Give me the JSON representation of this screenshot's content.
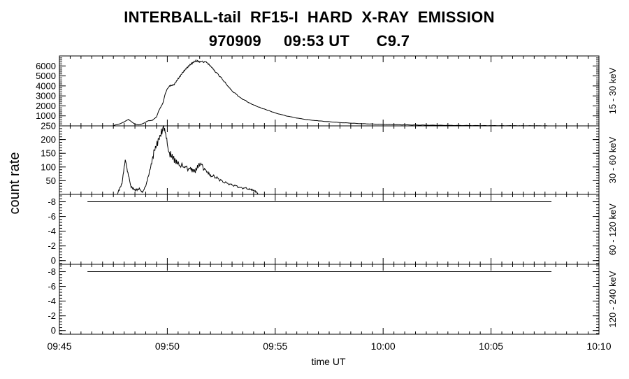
{
  "header": {
    "title_line1": "INTERBALL-tail  RF15-I  HARD  X-RAY  EMISSION",
    "title_line2": "970909     09:53 UT      C9.7"
  },
  "chart_data": {
    "type": "line",
    "xlabel": "time UT",
    "ylabel": "count rate",
    "x_range_minutes": [
      0,
      25
    ],
    "x_ticks": [
      {
        "m": 0,
        "label": "09:45"
      },
      {
        "m": 5,
        "label": "09:50"
      },
      {
        "m": 10,
        "label": "09:55"
      },
      {
        "m": 15,
        "label": "10:00"
      },
      {
        "m": 20,
        "label": "10:05"
      },
      {
        "m": 25,
        "label": "10:10"
      }
    ],
    "panels": [
      {
        "band": "15 - 30 keV",
        "ylim": [
          0,
          7000
        ],
        "yticks": [
          1000,
          2000,
          3000,
          4000,
          5000,
          6000
        ],
        "ytick_labels": [
          "1000",
          "2000",
          "3000",
          "4000",
          "5000",
          "6000"
        ],
        "series": [
          {
            "x_minutes": [
              2.5,
              2.8,
              3.0,
              3.2,
              3.35,
              3.5,
              3.7,
              3.9,
              4.1,
              4.3,
              4.5,
              4.6,
              4.8,
              4.9,
              5.0,
              5.1,
              5.3,
              5.5,
              5.7,
              5.9,
              6.1,
              6.3,
              6.5,
              6.8,
              7.0,
              7.2,
              7.5,
              7.8,
              8.0,
              8.4,
              8.8,
              9.2,
              9.6,
              10.0,
              10.5,
              11.0,
              11.5,
              12.0,
              13.0,
              14.0,
              15.0,
              16.0,
              17.0,
              18.0,
              19.0,
              20.0,
              21.0,
              22.6
            ],
            "y": [
              30,
              200,
              400,
              650,
              400,
              150,
              100,
              250,
              500,
              550,
              900,
              1500,
              2300,
              3200,
              3700,
              4000,
              4100,
              4700,
              5300,
              5800,
              6200,
              6500,
              6450,
              6400,
              6000,
              5500,
              4800,
              4000,
              3500,
              2800,
              2300,
              1900,
              1600,
              1300,
              1000,
              780,
              620,
              500,
              330,
              220,
              150,
              100,
              70,
              50,
              35,
              25,
              18,
              10
            ]
          }
        ]
      },
      {
        "band": "30 - 60 keV",
        "ylim": [
          0,
          250
        ],
        "yticks": [
          50,
          100,
          150,
          200,
          250
        ],
        "ytick_labels": [
          "50",
          "100",
          "150",
          "200",
          "250"
        ],
        "series": [
          {
            "x_minutes": [
              2.7,
              2.9,
              3.05,
              3.15,
              3.3,
              3.5,
              3.7,
              3.85,
              4.0,
              4.2,
              4.4,
              4.6,
              4.8,
              4.9,
              5.0,
              5.1,
              5.3,
              5.5,
              5.8,
              6.1,
              6.3,
              6.5,
              6.8,
              7.0,
              7.3,
              7.6,
              8.0,
              8.4,
              8.8,
              9.0,
              9.2
            ],
            "y": [
              5,
              40,
              120,
              90,
              30,
              15,
              20,
              10,
              30,
              90,
              160,
              200,
              240,
              235,
              180,
              150,
              130,
              110,
              100,
              90,
              85,
              115,
              85,
              70,
              60,
              45,
              35,
              25,
              20,
              15,
              5
            ]
          }
        ]
      },
      {
        "band": "60 - 120 keV",
        "ylim": [
          0.5,
          -9
        ],
        "yticks": [
          0,
          -2,
          -4,
          -6,
          -8
        ],
        "ytick_labels": [
          "0",
          "-2",
          "-4",
          "-6",
          "-8"
        ],
        "series": [
          {
            "x_minutes": [
              1.3,
              22.8
            ],
            "y": [
              -8,
              -8
            ]
          }
        ]
      },
      {
        "band": "120 - 240 keV",
        "ylim": [
          0.5,
          -9
        ],
        "yticks": [
          0,
          -2,
          -4,
          -6,
          -8
        ],
        "ytick_labels": [
          "0",
          "-2",
          "-4",
          "-6",
          "-8"
        ],
        "series": [
          {
            "x_minutes": [
              1.3,
              22.8
            ],
            "y": [
              -8,
              -8
            ]
          }
        ]
      }
    ]
  }
}
